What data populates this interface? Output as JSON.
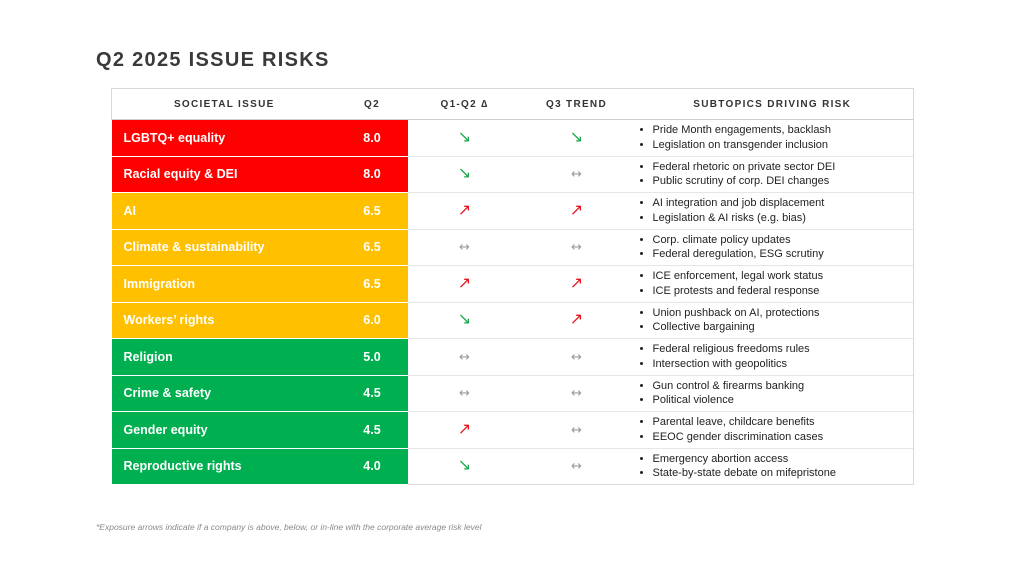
{
  "title": "Q2 2025 ISSUE RISKS",
  "colors": {
    "red": "#ff0000",
    "amber": "#ffc000",
    "green": "#00b050"
  },
  "headers": {
    "issue": "SOCIETAL ISSUE",
    "q2": "Q2",
    "delta": "Q1-Q2 ∆",
    "trend": "Q3 TREND",
    "subtopics": "SUBTOPICS DRIVING RISK"
  },
  "rows": [
    {
      "issue": "LGBTQ+ equality",
      "score": "8.0",
      "level": "red",
      "delta": "down",
      "trend": "down",
      "subtopics": [
        "Pride Month engagements, backlash",
        "Legislation on transgender inclusion"
      ]
    },
    {
      "issue": "Racial equity & DEI",
      "score": "8.0",
      "level": "red",
      "delta": "down",
      "trend": "flat",
      "subtopics": [
        "Federal rhetoric on private sector DEI",
        "Public scrutiny of corp. DEI changes"
      ]
    },
    {
      "issue": "AI",
      "score": "6.5",
      "level": "amber",
      "delta": "up",
      "trend": "up",
      "subtopics": [
        "AI integration and job displacement",
        "Legislation & AI risks (e.g. bias)"
      ]
    },
    {
      "issue": "Climate & sustainability",
      "score": "6.5",
      "level": "amber",
      "delta": "flat",
      "trend": "flat",
      "subtopics": [
        "Corp. climate policy updates",
        "Federal deregulation, ESG scrutiny"
      ]
    },
    {
      "issue": "Immigration",
      "score": "6.5",
      "level": "amber",
      "delta": "up",
      "trend": "up",
      "subtopics": [
        "ICE enforcement, legal work status",
        "ICE protests and federal response"
      ]
    },
    {
      "issue": "Workers’ rights",
      "score": "6.0",
      "level": "amber",
      "delta": "down",
      "trend": "up",
      "subtopics": [
        "Union pushback on AI, protections",
        "Collective bargaining"
      ]
    },
    {
      "issue": "Religion",
      "score": "5.0",
      "level": "green",
      "delta": "flat",
      "trend": "flat",
      "subtopics": [
        "Federal religious freedoms rules",
        "Intersection with geopolitics"
      ]
    },
    {
      "issue": "Crime & safety",
      "score": "4.5",
      "level": "green",
      "delta": "flat",
      "trend": "flat",
      "subtopics": [
        "Gun control & firearms banking",
        "Political violence"
      ]
    },
    {
      "issue": "Gender equity",
      "score": "4.5",
      "level": "green",
      "delta": "up",
      "trend": "flat",
      "subtopics": [
        "Parental leave, childcare benefits",
        "EEOC gender discrimination cases"
      ]
    },
    {
      "issue": "Reproductive rights",
      "score": "4.0",
      "level": "green",
      "delta": "down",
      "trend": "flat",
      "subtopics": [
        "Emergency abortion access",
        "State-by-state debate on mifepristone"
      ]
    }
  ],
  "footnote": "*Exposure arrows indicate if  a company is above, below, or in-line with the corporate average risk level"
}
